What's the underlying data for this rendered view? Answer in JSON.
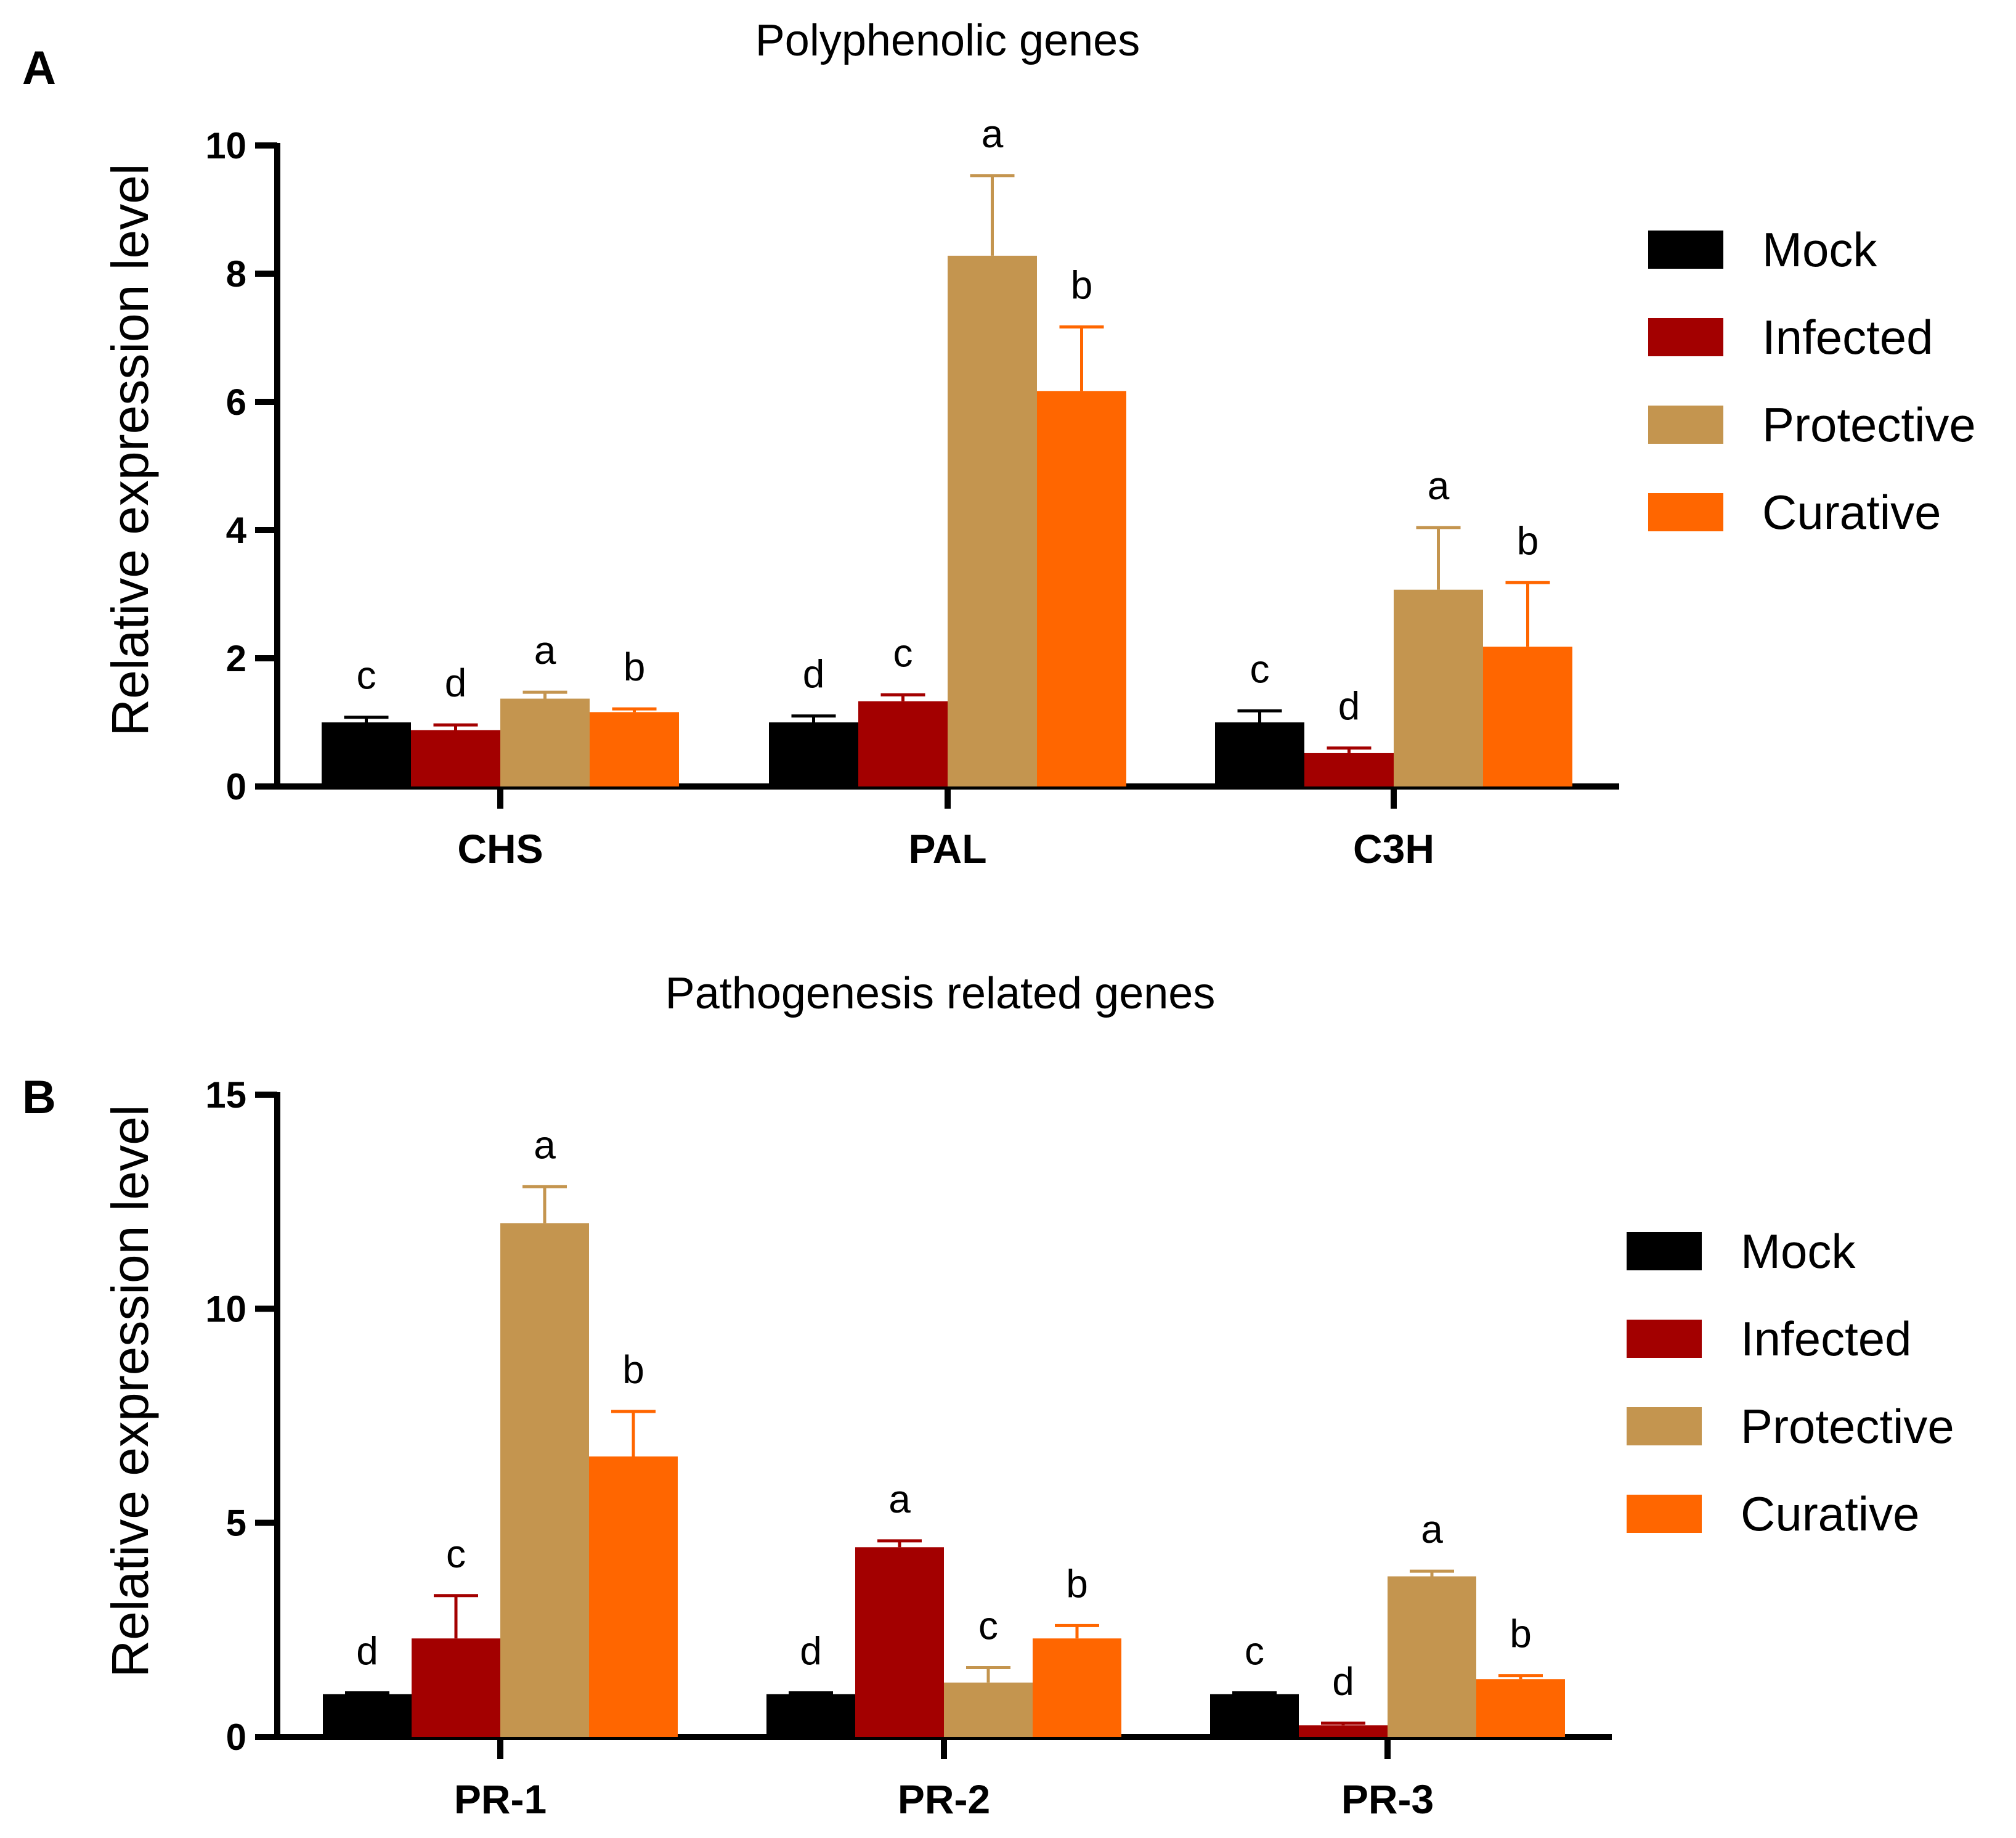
{
  "chart_data": [
    {
      "type": "bar",
      "panel": "A",
      "title": "Polyphenolic genes",
      "xlabel": "",
      "ylabel": "Relative expression level",
      "ylim": [
        0,
        10
      ],
      "yticks": [
        0,
        2,
        4,
        6,
        8,
        10
      ],
      "categories": [
        "CHS",
        "PAL",
        "C3H"
      ],
      "series": [
        {
          "name": "Mock",
          "color": "#000000",
          "values": [
            1.0,
            1.0,
            1.0
          ],
          "errors": [
            0.08,
            0.1,
            0.18
          ],
          "letters": [
            "c",
            "d",
            "c"
          ]
        },
        {
          "name": "Infected",
          "color": "#a30000",
          "values": [
            0.88,
            1.33,
            0.52
          ],
          "errors": [
            0.08,
            0.1,
            0.08
          ],
          "letters": [
            "d",
            "c",
            "d"
          ]
        },
        {
          "name": "Protective",
          "color": "#c4954f",
          "values": [
            1.37,
            8.28,
            3.07
          ],
          "errors": [
            0.1,
            1.25,
            0.97
          ],
          "letters": [
            "a",
            "a",
            "a"
          ]
        },
        {
          "name": "Curative",
          "color": "#ff6600",
          "values": [
            1.16,
            6.17,
            2.18
          ],
          "errors": [
            0.05,
            1.0,
            1.0
          ],
          "letters": [
            "b",
            "b",
            "b"
          ]
        }
      ],
      "legend": [
        "Mock",
        "Infected",
        "Protective",
        "Curative"
      ],
      "legend_position": "right"
    },
    {
      "type": "bar",
      "panel": "B",
      "title": "Pathogenesis related genes",
      "xlabel": "",
      "ylabel": "Relative expression level",
      "ylim": [
        0,
        15
      ],
      "yticks": [
        0,
        5,
        10,
        15
      ],
      "categories": [
        "PR-1",
        "PR-2",
        "PR-3"
      ],
      "series": [
        {
          "name": "Mock",
          "color": "#000000",
          "values": [
            1.0,
            1.0,
            1.0
          ],
          "errors": [
            0.03,
            0.03,
            0.03
          ],
          "letters": [
            "d",
            "d",
            "c"
          ]
        },
        {
          "name": "Infected",
          "color": "#a30000",
          "values": [
            2.3,
            4.43,
            0.27
          ],
          "errors": [
            1.0,
            0.15,
            0.05
          ],
          "letters": [
            "c",
            "a",
            "d"
          ]
        },
        {
          "name": "Protective",
          "color": "#c4954f",
          "values": [
            12.0,
            1.27,
            3.75
          ],
          "errors": [
            0.85,
            0.35,
            0.12
          ],
          "letters": [
            "a",
            "c",
            "a"
          ]
        },
        {
          "name": "Curative",
          "color": "#ff6600",
          "values": [
            6.55,
            2.3,
            1.35
          ],
          "errors": [
            1.05,
            0.3,
            0.08
          ],
          "letters": [
            "b",
            "b",
            "b"
          ]
        }
      ],
      "legend": [
        "Mock",
        "Infected",
        "Protective",
        "Curative"
      ],
      "legend_position": "right"
    }
  ]
}
